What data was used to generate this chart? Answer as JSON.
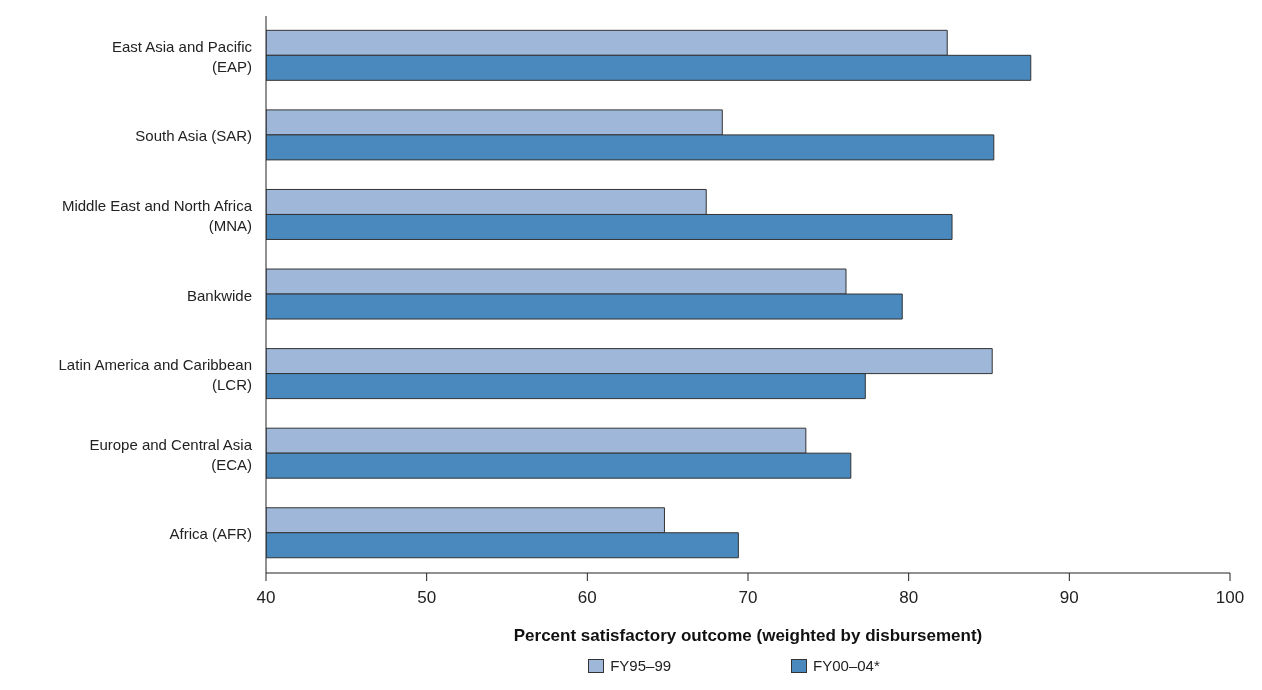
{
  "chart_data": {
    "type": "bar",
    "orientation": "horizontal",
    "xlabel": "Percent satisfactory outcome (weighted by disbursement)",
    "categories": [
      "East Asia and Pacific (EAP)",
      "South Asia (SAR)",
      "Middle East and North Africa (MNA)",
      "Bankwide",
      "Latin America and Caribbean (LCR)",
      "Europe and Central Asia (ECA)",
      "Africa (AFR)"
    ],
    "series": [
      {
        "name": "FY95–99",
        "color": "#9fb8da",
        "values": [
          82.4,
          68.4,
          67.4,
          76.1,
          85.2,
          73.6,
          64.8
        ]
      },
      {
        "name": "FY00–04*",
        "color": "#4a89be",
        "values": [
          87.6,
          85.3,
          82.7,
          79.6,
          77.3,
          76.4,
          69.4
        ]
      }
    ],
    "xlim": [
      40,
      100
    ],
    "xticks": [
      40,
      50,
      60,
      70,
      80,
      90,
      100
    ],
    "grid": false,
    "legend": "bottom"
  }
}
